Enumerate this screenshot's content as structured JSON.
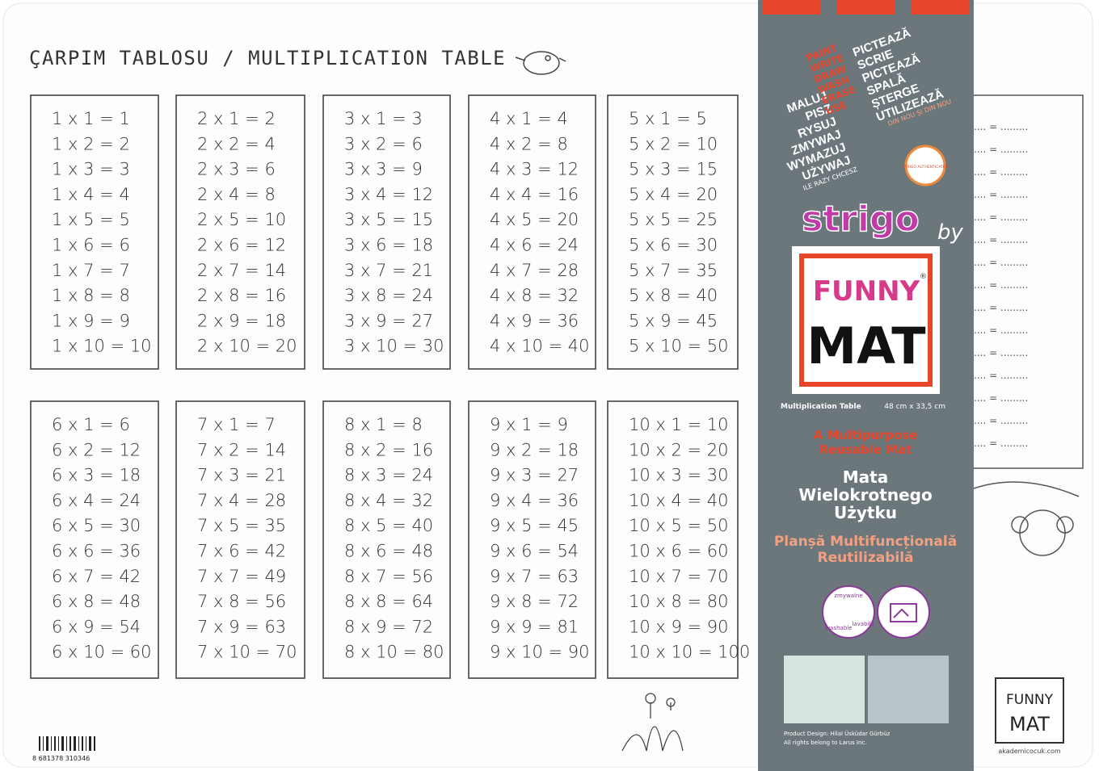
{
  "title": "ÇARPIM TABLOSU / MULTIPLICATION TABLE",
  "tables": [
    [
      "1 x 1 = 1",
      "1 x 2 = 2",
      "1 x 3 = 3",
      "1 x 4 = 4",
      "1 x 5 = 5",
      "1 x 6 = 6",
      "1 x 7 = 7",
      "1 x 8 = 8",
      "1 x 9 = 9",
      "1 x 10 = 10"
    ],
    [
      "2 x 1 = 2",
      "2 x 2 = 4",
      "2 x 3 = 6",
      "2 x 4 = 8",
      "2 x 5 = 10",
      "2 x 6 = 12",
      "2 x 7 = 14",
      "2 x 8 = 16",
      "2 x 9 = 18",
      "2 x 10 = 20"
    ],
    [
      "3 x 1 = 3",
      "3 x 2 = 6",
      "3 x 3 = 9",
      "3 x 4 = 12",
      "3 x 5 = 15",
      "3 x 6 = 18",
      "3 x 7 = 21",
      "3 x 8 = 24",
      "3 x 9 = 27",
      "3 x 10 = 30"
    ],
    [
      "4 x 1 = 4",
      "4 x 2 = 8",
      "4 x 3 = 12",
      "4 x 4 = 16",
      "4 x 5 = 20",
      "4 x 6 = 24",
      "4 x 7 = 28",
      "4 x 8 = 32",
      "4 x 9 = 36",
      "4 x 10 = 40"
    ],
    [
      "5 x 1 = 5",
      "5 x 2 = 10",
      "5 x 3 = 15",
      "5 x 4 = 20",
      "5 x 5 = 25",
      "5 x 6 = 30",
      "5 x 7 = 35",
      "5 x 8 = 40",
      "5 x 9 = 45",
      "5 x 10 = 50"
    ],
    [
      "6 x 1 = 6",
      "6 x 2 = 12",
      "6 x 3 = 18",
      "6 x 4 = 24",
      "6 x 5 = 30",
      "6 x 6 = 36",
      "6 x 7 = 42",
      "6 x 8 = 48",
      "6 x 9 = 54",
      "6 x 10 = 60"
    ],
    [
      "7 x 1 = 7",
      "7 x 2 = 14",
      "7 x 3 = 21",
      "7 x 4 = 28",
      "7 x 5 = 35",
      "7 x 6 = 42",
      "7 x 7 = 49",
      "7 x 8 = 56",
      "7 x 9 = 63",
      "7 x 10 = 70"
    ],
    [
      "8 x 1 = 8",
      "8 x 2 = 16",
      "8 x 3 = 24",
      "8 x 4 = 32",
      "8 x 5 = 40",
      "8 x 6 = 48",
      "8 x 7 = 56",
      "8 x 8 = 64",
      "8 x 9 = 72",
      "8 x 10 = 80"
    ],
    [
      "9 x 1 = 9",
      "9 x 2 = 18",
      "9 x 3 = 27",
      "9 x 4 = 36",
      "9 x 5 = 45",
      "9 x 6 = 54",
      "9 x 7 = 63",
      "9 x 8 = 72",
      "9 x 9 = 81",
      "9 x 10 = 90"
    ],
    [
      "10 x 1 = 10",
      "10 x 2 = 20",
      "10 x 3 = 30",
      "10 x 4 = 40",
      "10 x 5 = 50",
      "10 x 6 = 60",
      "10 x 7 = 70",
      "10 x 8 = 80",
      "10 x 9 = 90",
      "10 x 10 = 100"
    ]
  ],
  "practice": [
    ".... = .........",
    ".... = .........",
    ".... = .........",
    ".... = .........",
    ".... = .........",
    ".... = .........",
    ".... = .........",
    ".... = .........",
    ".... = .........",
    ".... = .........",
    ".... = .........",
    ".... = .........",
    ".... = .........",
    ".... = .........",
    ".... = ........."
  ],
  "label": {
    "polish": [
      "MALUJ",
      "PISZ",
      "RYSUJ",
      "ZMYWAJ",
      "WYMAZUJ",
      "UŻYWAJ"
    ],
    "polish_tagline": "ILE RAZY CHCESZ",
    "english": [
      "PAINT",
      "WRITE",
      "DRAW",
      "WASH",
      "ERASE",
      "USE"
    ],
    "romanian": [
      "PICTEAZĂ",
      "SCRIE",
      "PICTEAZĂ",
      "SPALĂ",
      "ȘTERGE",
      "UTILIZEAZĂ"
    ],
    "romanian_tagline": "DIN NOU ȘI DIN NOU",
    "badge": "STRIGO AUTHENTICATED",
    "brand": "strigo",
    "by": "by",
    "logo_top": "FUNNY",
    "logo_bottom": "MAT",
    "registered": "®",
    "product": "Multiplication Table",
    "size": "48 cm x 33,5 cm",
    "english_desc": [
      "A Multipurpose",
      "Reusable Mat"
    ],
    "polish_desc": [
      "Mata",
      "Wielokrotnego",
      "Użytku"
    ],
    "romanian_desc": [
      "Planșă Multifuncțională",
      "Reutilizabilă"
    ],
    "icon_words": [
      "zmywalne",
      "washable",
      "lavabilă"
    ],
    "credit": "Product Design: Hilal Üsküdar Gürbüz",
    "rights": "All rights belong to Larus Inc."
  },
  "corner_logo": {
    "top": "FUNNY",
    "bottom": "MAT",
    "site": "akademicocuk.com"
  },
  "barcode": "8 681378 310346"
}
